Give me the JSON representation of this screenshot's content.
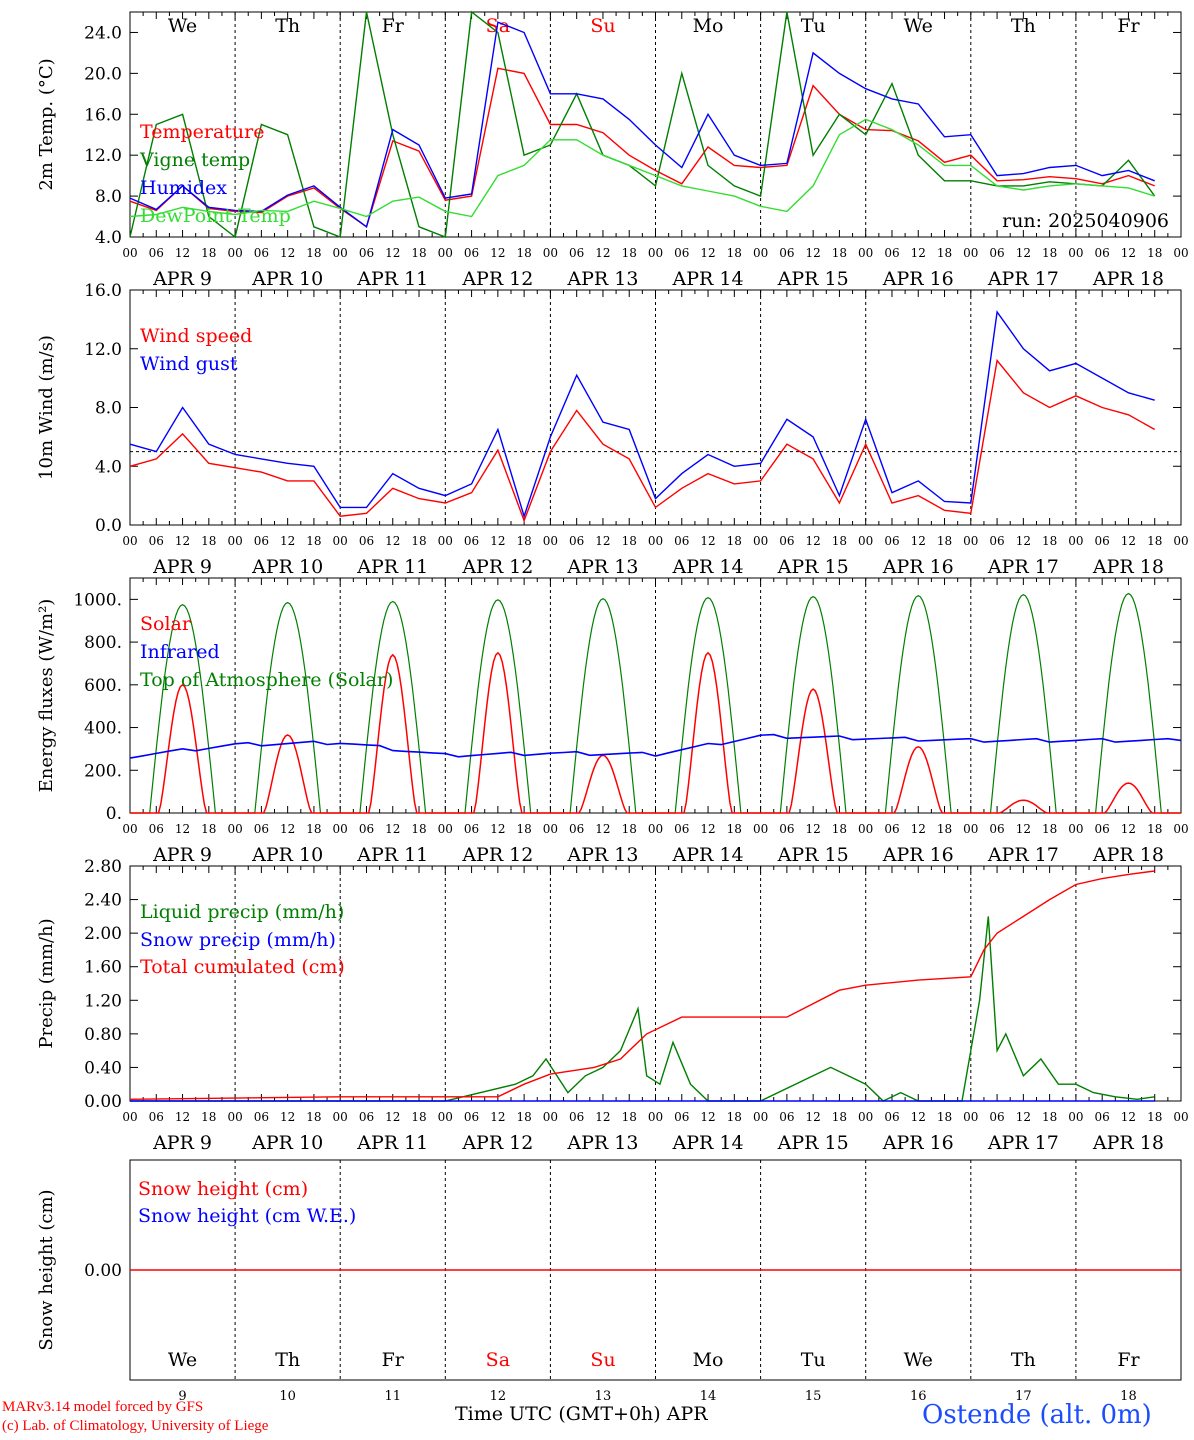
{
  "meta": {
    "run_label": "run: 2025040906",
    "station": "Ostende (alt. 0m)",
    "credit_line1": "MARv3.14 model forced by GFS",
    "credit_line2": "(c) Lab. of Climatology, University of Liege",
    "x_axis_title": "Time UTC (GMT+0h)",
    "x_axis_month": "APR"
  },
  "axis": {
    "hour_ticks": [
      "00",
      "06",
      "12",
      "18"
    ],
    "end_tick": "00",
    "dates": [
      "APR  9",
      "APR 10",
      "APR 11",
      "APR 12",
      "APR 13",
      "APR 14",
      "APR 15",
      "APR 16",
      "APR 17",
      "APR 18"
    ],
    "weekdays": [
      "We",
      "Th",
      "Fr",
      "Sa",
      "Su",
      "Mo",
      "Tu",
      "We",
      "Th",
      "Fr"
    ],
    "weekend_days": [
      3,
      4
    ],
    "day_numbers": [
      "9",
      "10",
      "11",
      "12",
      "13",
      "14",
      "15",
      "16",
      "17",
      "18"
    ]
  },
  "colors": {
    "red": "#ff0000",
    "green": "#007f00",
    "blue": "#0000ff",
    "lightgreen": "#33dd33",
    "weekend": "#ff0000",
    "black": "#000000"
  },
  "chart_data": [
    {
      "type": "line",
      "ylabel": "2m Temp. (°C)",
      "ylim": [
        4,
        26
      ],
      "yticks": [
        4,
        8,
        12,
        16,
        20,
        24
      ],
      "ytick_labels": [
        "4.0",
        "8.0",
        "12.0",
        "16.0",
        "20.0",
        "24.0"
      ],
      "x_unit": "hours since APR 9 00 UTC",
      "legend": [
        "Temperature",
        "Vigne temp",
        "Humidex",
        "DewPoint Temp"
      ],
      "series": [
        {
          "name": "Temperature",
          "color": "red",
          "x": [
            0,
            6,
            12,
            18,
            24,
            30,
            36,
            42,
            48,
            54,
            60,
            66,
            72,
            78,
            84,
            90,
            96,
            102,
            108,
            114,
            120,
            126,
            132,
            138,
            144,
            150,
            156,
            162,
            168,
            174,
            180,
            186,
            192,
            198,
            204,
            210,
            216,
            222,
            228,
            234
          ],
          "values": [
            7.5,
            6.6,
            9.0,
            6.8,
            6.5,
            6.4,
            8.0,
            8.8,
            6.8,
            5.0,
            13.4,
            12.4,
            7.6,
            8.0,
            20.5,
            20.0,
            15.0,
            15.0,
            14.2,
            12.0,
            10.5,
            9.2,
            12.8,
            11.0,
            10.8,
            11.0,
            18.8,
            16.0,
            14.5,
            14.4,
            13.4,
            11.3,
            12.0,
            9.5,
            9.6,
            9.9,
            9.7,
            9.2,
            10.0,
            9.0
          ]
        },
        {
          "name": "Vigne temp",
          "color": "green",
          "x": [
            0,
            6,
            12,
            18,
            24,
            30,
            36,
            42,
            48,
            54,
            60,
            66,
            72,
            78,
            84,
            90,
            96,
            102,
            108,
            114,
            120,
            126,
            132,
            138,
            144,
            150,
            156,
            162,
            168,
            174,
            180,
            186,
            192,
            198,
            204,
            210,
            216,
            222,
            228,
            234
          ],
          "values": [
            4.0,
            15.0,
            16.0,
            6.0,
            4.0,
            15.0,
            14.0,
            5.0,
            4.0,
            26.0,
            14.0,
            5.0,
            4.0,
            26.0,
            24.0,
            12.0,
            13.0,
            18.0,
            12.0,
            11.0,
            9.0,
            20.0,
            11.0,
            9.0,
            8.0,
            26.0,
            12.0,
            16.0,
            14.0,
            19.0,
            12.0,
            9.5,
            9.5,
            9.0,
            9.0,
            9.4,
            9.2,
            9.0,
            11.5,
            8.0
          ]
        },
        {
          "name": "Humidex",
          "color": "blue",
          "x": [
            0,
            6,
            12,
            18,
            24,
            30,
            36,
            42,
            48,
            54,
            60,
            66,
            72,
            78,
            84,
            90,
            96,
            102,
            108,
            114,
            120,
            126,
            132,
            138,
            144,
            150,
            156,
            162,
            168,
            174,
            180,
            186,
            192,
            198,
            204,
            210,
            216,
            222,
            228,
            234
          ],
          "values": [
            7.8,
            6.7,
            9.0,
            6.9,
            6.6,
            6.5,
            8.1,
            9.0,
            6.9,
            5.0,
            14.5,
            13.0,
            7.8,
            8.2,
            25.0,
            24.0,
            18.0,
            18.0,
            17.5,
            15.5,
            13.0,
            10.8,
            16.0,
            12.0,
            11.0,
            11.2,
            22.0,
            20.0,
            18.5,
            17.5,
            17.0,
            13.8,
            14.0,
            10.0,
            10.2,
            10.8,
            11.0,
            10.0,
            10.5,
            9.5
          ]
        },
        {
          "name": "DewPoint Temp",
          "color": "lightgreen",
          "x": [
            0,
            6,
            12,
            18,
            24,
            30,
            36,
            42,
            48,
            54,
            60,
            66,
            72,
            78,
            84,
            90,
            96,
            102,
            108,
            114,
            120,
            126,
            132,
            138,
            144,
            150,
            156,
            162,
            168,
            174,
            180,
            186,
            192,
            198,
            204,
            210,
            216,
            222,
            228,
            234
          ],
          "values": [
            6.0,
            6.2,
            6.9,
            6.5,
            6.2,
            6.6,
            6.5,
            7.5,
            6.8,
            6.0,
            7.5,
            7.9,
            6.5,
            6.0,
            10.0,
            11.0,
            13.5,
            13.5,
            12.0,
            11.0,
            10.0,
            9.0,
            8.5,
            8.0,
            7.0,
            6.5,
            9.0,
            14.0,
            15.5,
            14.5,
            13.0,
            11.0,
            11.0,
            9.0,
            8.6,
            9.0,
            9.2,
            9.0,
            8.8,
            8.0
          ]
        }
      ]
    },
    {
      "type": "line",
      "ylabel": "10m Wind (m/s)",
      "ylim": [
        0,
        16
      ],
      "yticks": [
        0,
        4,
        8,
        12,
        16
      ],
      "ytick_labels": [
        "0.0",
        "4.0",
        "8.0",
        "12.0",
        "16.0"
      ],
      "reference_line": 5,
      "legend": [
        "Wind speed",
        "Wind gust"
      ],
      "series": [
        {
          "name": "Wind speed",
          "color": "red",
          "x": [
            0,
            6,
            12,
            18,
            24,
            30,
            36,
            42,
            48,
            54,
            60,
            66,
            72,
            78,
            84,
            90,
            96,
            102,
            108,
            114,
            120,
            126,
            132,
            138,
            144,
            150,
            156,
            162,
            168,
            174,
            180,
            186,
            192,
            198,
            204,
            210,
            216,
            222,
            228,
            234
          ],
          "values": [
            4.0,
            4.5,
            6.2,
            4.2,
            3.9,
            3.6,
            3.0,
            3.0,
            0.6,
            0.8,
            2.5,
            1.8,
            1.5,
            2.2,
            5.1,
            0.3,
            5.0,
            7.8,
            5.5,
            4.5,
            1.2,
            2.5,
            3.5,
            2.8,
            3.0,
            5.5,
            4.5,
            1.5,
            5.5,
            1.5,
            2.0,
            1.0,
            0.8,
            11.2,
            9.0,
            8.0,
            8.8,
            8.0,
            7.5,
            6.5
          ]
        },
        {
          "name": "Wind gust",
          "color": "blue",
          "x": [
            0,
            6,
            12,
            18,
            24,
            30,
            36,
            42,
            48,
            54,
            60,
            66,
            72,
            78,
            84,
            90,
            96,
            102,
            108,
            114,
            120,
            126,
            132,
            138,
            144,
            150,
            156,
            162,
            168,
            174,
            180,
            186,
            192,
            198,
            204,
            210,
            216,
            222,
            228,
            234
          ],
          "values": [
            5.5,
            5.0,
            8.0,
            5.5,
            4.8,
            4.5,
            4.2,
            4.0,
            1.2,
            1.2,
            3.5,
            2.5,
            2.0,
            2.8,
            6.5,
            0.6,
            6.0,
            10.2,
            7.0,
            6.5,
            1.8,
            3.5,
            4.8,
            4.0,
            4.2,
            7.2,
            6.0,
            2.0,
            7.2,
            2.2,
            3.0,
            1.6,
            1.5,
            14.5,
            12.0,
            10.5,
            11.0,
            10.0,
            9.0,
            8.5
          ]
        }
      ]
    },
    {
      "type": "line",
      "ylabel": "Energy fluxes (W/m²)",
      "ylim": [
        0,
        1100
      ],
      "yticks": [
        0,
        200,
        400,
        600,
        800,
        1000
      ],
      "ytick_labels": [
        "0.",
        "200.",
        "400.",
        "600.",
        "800.",
        "1000."
      ],
      "legend": [
        "Solar",
        "Infrared",
        "Top of Atmosphere (Solar)"
      ],
      "toa_peak": [
        975,
        985,
        990,
        998,
        1003,
        1008,
        1013,
        1017,
        1022,
        1027
      ],
      "solar_peak": [
        600,
        365,
        740,
        750,
        270,
        750,
        580,
        310,
        60,
        140
      ],
      "infrared": [
        265,
        320,
        330,
        270,
        280,
        275,
        360,
        350,
        340,
        340
      ]
    },
    {
      "type": "line",
      "ylabel": "Precip (mm/h)",
      "ylim": [
        0,
        2.8
      ],
      "yticks": [
        0,
        0.4,
        0.8,
        1.2,
        1.6,
        2.0,
        2.4,
        2.8
      ],
      "ytick_labels": [
        "0.00",
        "0.40",
        "0.80",
        "1.20",
        "1.60",
        "2.00",
        "2.40",
        "2.80"
      ],
      "legend": [
        "Liquid precip (mm/h)",
        "Snow precip (mm/h)",
        "Total cumulated (cm)"
      ],
      "series": [
        {
          "name": "Liquid precip (mm/h)",
          "color": "green",
          "x": [
            0,
            72,
            88,
            92,
            95,
            100,
            104,
            108,
            112,
            116,
            118,
            121,
            124,
            128,
            132,
            144,
            156,
            160,
            164,
            168,
            172,
            176,
            180,
            190,
            194,
            196,
            198,
            200,
            204,
            208,
            212,
            216,
            220,
            225,
            230,
            234
          ],
          "values": [
            0,
            0,
            0.2,
            0.3,
            0.5,
            0.1,
            0.3,
            0.4,
            0.6,
            1.1,
            0.3,
            0.2,
            0.7,
            0.2,
            0,
            0,
            0.3,
            0.4,
            0.3,
            0.2,
            0,
            0.1,
            0,
            0,
            1.2,
            2.2,
            0.6,
            0.8,
            0.3,
            0.5,
            0.2,
            0.2,
            0.1,
            0.05,
            0.02,
            0.05
          ]
        },
        {
          "name": "Snow precip (mm/h)",
          "color": "blue",
          "x": [
            0,
            234
          ],
          "values": [
            0,
            0
          ]
        },
        {
          "name": "Total cumulated (cm)",
          "color": "red",
          "x": [
            0,
            48,
            84,
            90,
            96,
            106,
            112,
            118,
            126,
            144,
            150,
            162,
            168,
            180,
            192,
            195,
            198,
            204,
            210,
            216,
            222,
            228,
            234
          ],
          "values": [
            0.02,
            0.05,
            0.05,
            0.2,
            0.32,
            0.4,
            0.5,
            0.8,
            1.0,
            1.0,
            1.0,
            1.32,
            1.38,
            1.44,
            1.48,
            1.8,
            2.0,
            2.2,
            2.4,
            2.58,
            2.65,
            2.7,
            2.74
          ]
        }
      ]
    },
    {
      "type": "line",
      "ylabel": "Snow height (cm)",
      "ytick_labels": [
        "0.00"
      ],
      "legend": [
        "Snow height (cm)",
        "Snow height (cm W.E.)"
      ],
      "series": [
        {
          "name": "Snow height (cm)",
          "color": "red",
          "x": [
            0,
            234
          ],
          "values": [
            0,
            0
          ]
        },
        {
          "name": "Snow height (cm W.E.)",
          "color": "blue",
          "x": [
            0,
            234
          ],
          "values": [
            0,
            0
          ]
        }
      ]
    }
  ]
}
